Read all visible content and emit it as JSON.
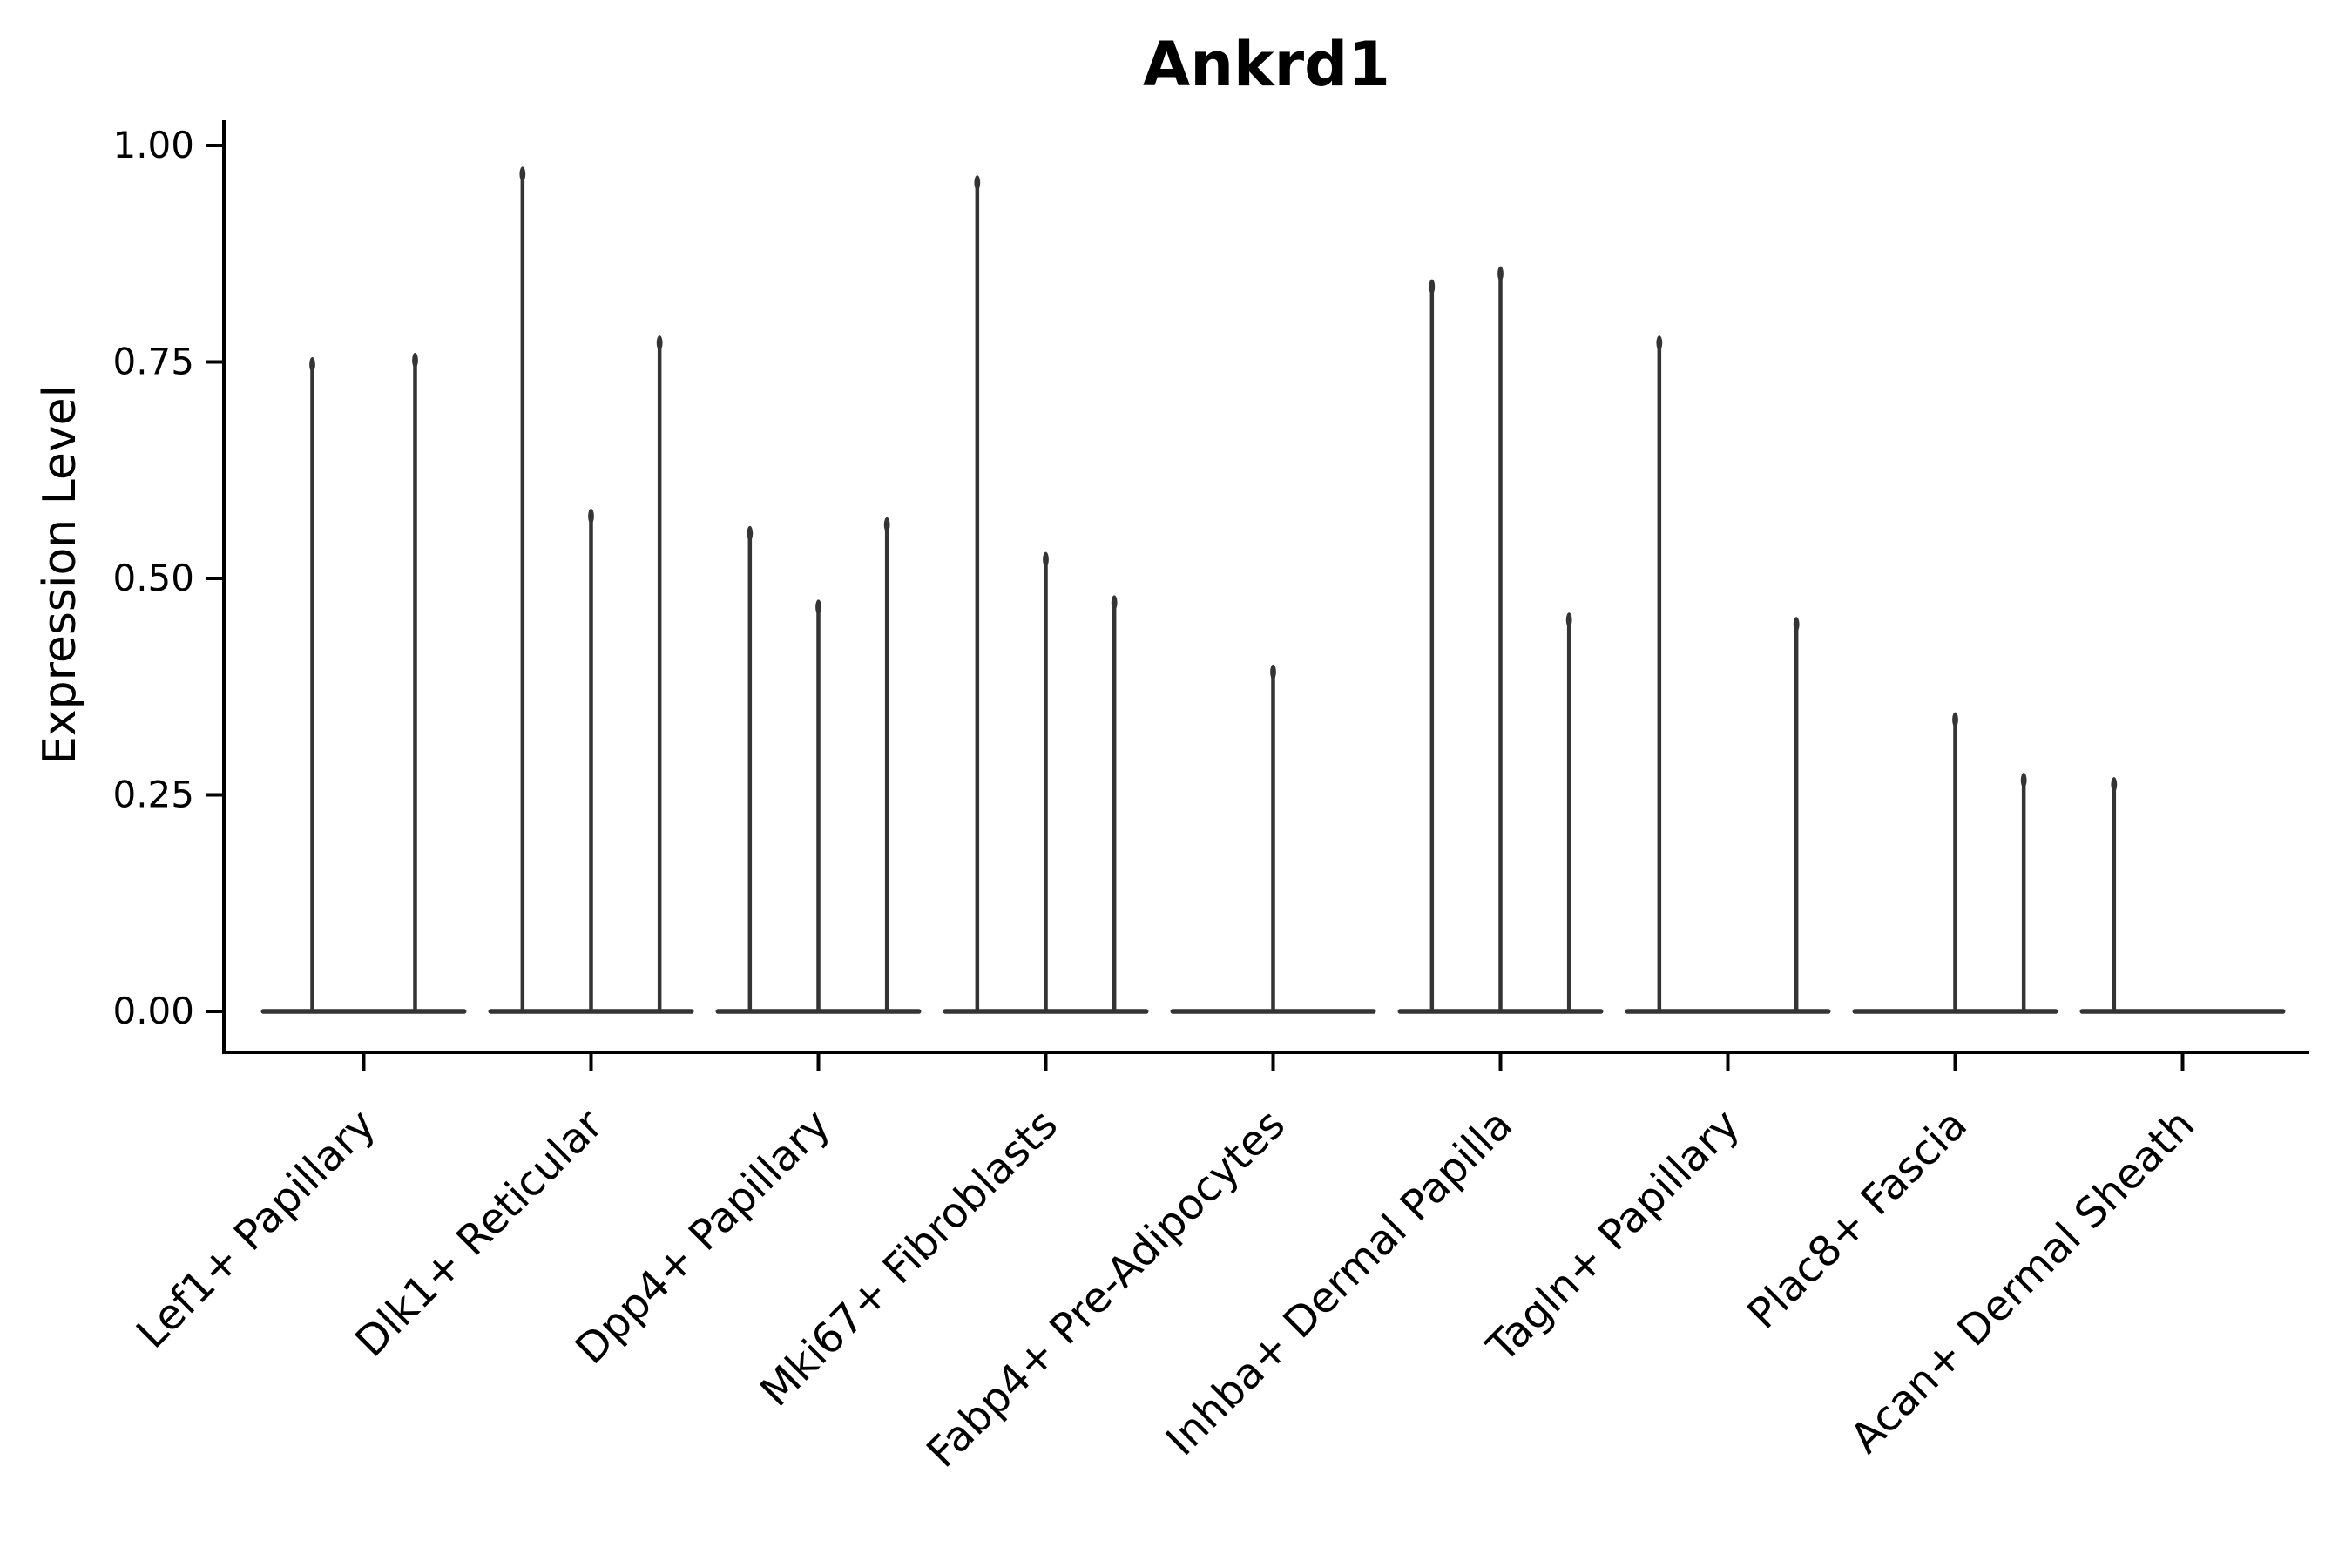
{
  "title": "Ankrd1",
  "chart_data": {
    "type": "violin",
    "title": "Ankrd1",
    "xlabel": "",
    "ylabel": "Expression Level",
    "ylim": [
      0.0,
      1.0
    ],
    "yticks": [
      1.0,
      0.75,
      0.5,
      0.25,
      0.0
    ],
    "ytick_labels": [
      "1.00",
      "0.75",
      "0.50",
      "0.25",
      "0.00"
    ],
    "grid": false,
    "legend": "none",
    "orientation": "vertical",
    "violin_style": "narrow-spike-with-flat-base-at-zero",
    "categories": [
      "Lef1+ Papillary",
      "Dlk1+ Reticular",
      "Dpp4+ Papillary",
      "Mki67+ Fibroblasts",
      "Fabp4+ Pre-Adipocytes",
      "Inhba+ Dermal Papilla",
      "Tagln+ Papillary",
      "Plac8+ Fascia",
      "Acan+ Dermal Sheath"
    ],
    "series": [
      {
        "category": "Lef1+ Papillary",
        "violin_peaks": [
          0.755,
          0.76
        ]
      },
      {
        "category": "Dlk1+ Reticular",
        "violin_peaks": [
          0.975,
          0.58,
          0.78
        ]
      },
      {
        "category": "Dpp4+ Papillary",
        "violin_peaks": [
          0.56,
          0.475,
          0.57
        ]
      },
      {
        "category": "Mki67+ Fibroblasts",
        "violin_peaks": [
          0.965,
          0.53,
          0.48
        ]
      },
      {
        "category": "Fabp4+ Pre-Adipocytes",
        "violin_peaks": [
          null,
          0.4,
          null
        ]
      },
      {
        "category": "Inhba+ Dermal Papilla",
        "violin_peaks": [
          0.845,
          0.86,
          0.46
        ]
      },
      {
        "category": "Tagln+ Papillary",
        "violin_peaks": [
          0.78,
          null,
          0.455
        ]
      },
      {
        "category": "Plac8+ Fascia",
        "violin_peaks": [
          null,
          0.345,
          0.275
        ]
      },
      {
        "category": "Acan+ Dermal Sheath",
        "violin_peaks": [
          0.27,
          null,
          null
        ]
      }
    ]
  },
  "style": {
    "violin_color": "#343434",
    "spine_color": "#000000",
    "text_color": "#000000",
    "background": "#ffffff"
  }
}
